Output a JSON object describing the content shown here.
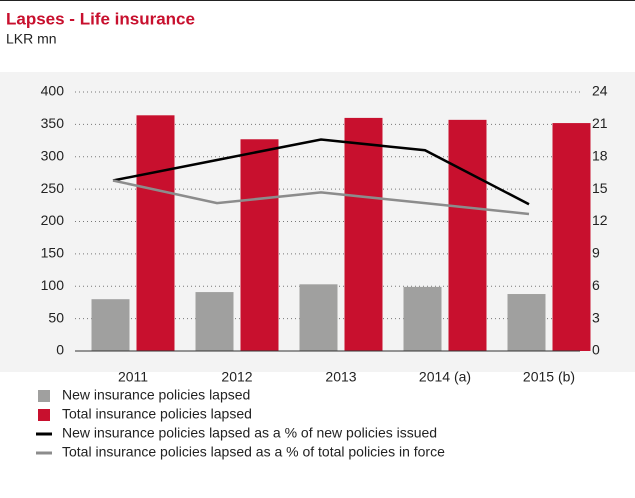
{
  "chart_data": {
    "type": "bar",
    "title": "Lapses - Life insurance",
    "subtitle": "LKR mn",
    "categories": [
      "2011",
      "2012",
      "2013",
      "2014 (a)",
      "2015 (b)"
    ],
    "series": [
      {
        "name": "New insurance policies lapsed",
        "color": "#a0a09f",
        "type": "bar",
        "values": [
          80,
          91,
          103,
          99,
          88
        ]
      },
      {
        "name": "Total insurance policies lapsed",
        "color": "#c8102e",
        "type": "bar",
        "values": [
          364,
          327,
          360,
          357,
          352
        ]
      },
      {
        "name": "New insurance policies lapsed as a % of new policies issued",
        "color": "#000000",
        "type": "line",
        "axis": "y2",
        "values": [
          15.8,
          17.7,
          19.6,
          18.6,
          13.6
        ]
      },
      {
        "name": "Total insurance policies lapsed as a % of total policies in force",
        "color": "#8c8c8c",
        "type": "line",
        "axis": "y2",
        "values": [
          15.8,
          13.7,
          14.7,
          13.7,
          12.7
        ]
      }
    ],
    "ylim": [
      0,
      400
    ],
    "yticks": [
      0,
      50,
      100,
      150,
      200,
      250,
      300,
      350,
      400
    ],
    "y2lim": [
      0,
      24
    ],
    "y2ticks": [
      0,
      3,
      6,
      9,
      12,
      15,
      18,
      21,
      24
    ],
    "grid": true
  }
}
